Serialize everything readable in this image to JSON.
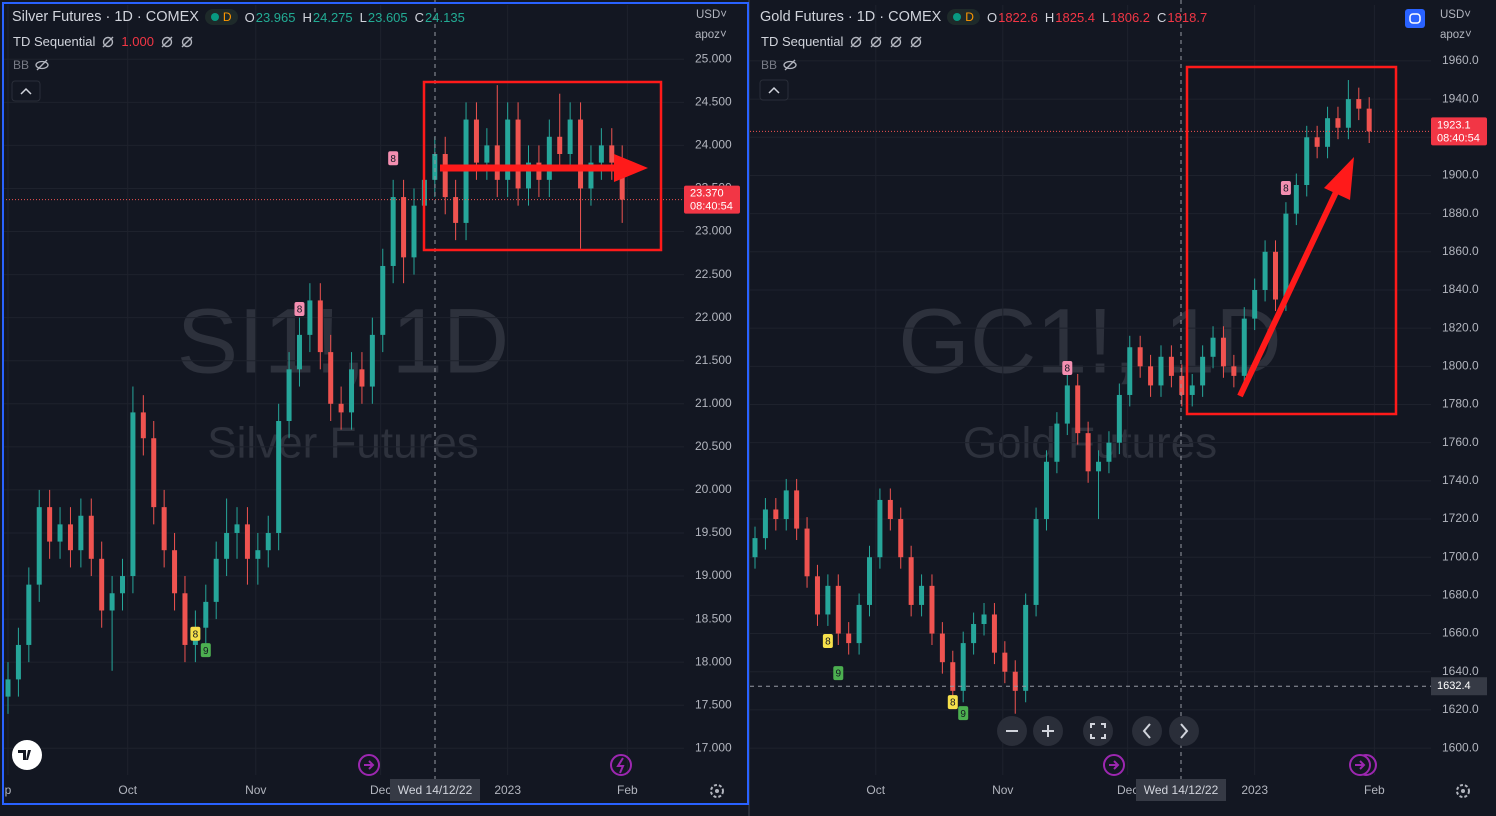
{
  "chart_data": [
    {
      "type": "candlestick",
      "title": "Silver Futures · 1D · COMEX",
      "interval_badge": "D",
      "ohlc_legend": [
        {
          "label": "O",
          "value": "23.965"
        },
        {
          "label": "H",
          "value": "24.275"
        },
        {
          "label": "L",
          "value": "23.605"
        },
        {
          "label": "C",
          "value": "24.135"
        }
      ],
      "ohlc_color": "#22ab94",
      "indicator": "TD Sequential",
      "indicator_param": "1.000",
      "overlay": "BB",
      "watermark": "SI1!, 1D",
      "watermark_sub": "Silver Futures",
      "currency": "USD",
      "unit": "apoz",
      "last_price": {
        "value": 23.37,
        "label": "23.370"
      },
      "countdown": "08:40:54",
      "crosshair_date": "Wed 14/12/22",
      "up_color": "#26a69a",
      "down_color": "#ef5350",
      "grid": true,
      "categories": [
        null,
        null,
        null,
        null,
        null,
        null,
        null,
        null,
        null,
        null,
        null,
        null,
        null,
        null,
        null,
        null,
        null,
        null,
        null,
        null,
        null,
        null,
        null,
        null,
        null,
        null,
        null,
        null,
        null,
        null,
        null,
        null,
        null,
        null,
        null,
        null,
        null,
        null,
        null,
        null,
        null,
        null,
        null,
        null,
        null,
        null,
        null,
        null,
        null,
        null,
        null,
        null,
        null,
        null,
        null,
        null,
        null,
        null,
        null,
        null
      ],
      "open": [
        17.6,
        17.8,
        18.2,
        18.9,
        19.8,
        19.4,
        19.6,
        19.3,
        19.7,
        19.2,
        18.6,
        18.8,
        19.0,
        20.9,
        20.6,
        19.8,
        19.3,
        18.8,
        18.2,
        18.4,
        18.7,
        19.2,
        19.5,
        19.6,
        19.2,
        19.3,
        19.5,
        20.8,
        21.4,
        21.8,
        22.2,
        21.6,
        21.0,
        20.9,
        21.4,
        21.2,
        21.8,
        22.6,
        23.4,
        22.7,
        23.3,
        23.6,
        23.9,
        23.4,
        23.1,
        24.3,
        23.8,
        24.0,
        23.6,
        24.3,
        23.5,
        23.8,
        23.6,
        24.1,
        23.9,
        24.3,
        23.5,
        23.8,
        24.0,
        23.8
      ],
      "high": [
        18.0,
        18.4,
        19.1,
        20.0,
        20.0,
        19.8,
        19.8,
        19.9,
        19.9,
        19.4,
        19.0,
        19.2,
        21.2,
        21.1,
        20.8,
        20.0,
        19.5,
        19.0,
        18.6,
        18.9,
        19.4,
        19.9,
        19.8,
        19.8,
        19.5,
        19.7,
        21.0,
        21.6,
        22.0,
        22.4,
        22.4,
        21.8,
        21.2,
        21.6,
        21.6,
        22.0,
        22.8,
        23.6,
        23.6,
        23.5,
        23.8,
        24.1,
        24.1,
        23.6,
        24.5,
        24.5,
        24.2,
        24.7,
        24.5,
        24.5,
        24.0,
        24.0,
        24.3,
        24.6,
        24.5,
        24.5,
        24.0,
        24.2,
        24.2,
        24.0
      ],
      "low": [
        17.4,
        17.6,
        18.0,
        18.7,
        19.2,
        19.2,
        19.1,
        19.1,
        19.0,
        18.4,
        17.9,
        18.6,
        18.8,
        20.4,
        19.6,
        19.1,
        18.6,
        18.0,
        18.0,
        18.2,
        18.5,
        19.0,
        19.2,
        18.9,
        18.9,
        19.1,
        19.3,
        20.6,
        21.2,
        21.6,
        21.4,
        20.8,
        20.7,
        20.7,
        21.0,
        21.0,
        21.6,
        22.4,
        22.4,
        22.5,
        23.1,
        23.4,
        23.2,
        22.9,
        22.9,
        23.6,
        23.6,
        23.4,
        23.4,
        23.3,
        23.3,
        23.4,
        23.4,
        23.7,
        23.7,
        22.8,
        23.3,
        23.6,
        23.6,
        23.1
      ],
      "close": [
        17.8,
        18.2,
        18.9,
        19.8,
        19.4,
        19.6,
        19.3,
        19.7,
        19.2,
        18.6,
        18.8,
        19.0,
        20.9,
        20.6,
        19.8,
        19.3,
        18.8,
        18.2,
        18.4,
        18.7,
        19.2,
        19.5,
        19.6,
        19.2,
        19.3,
        19.5,
        20.8,
        21.4,
        21.8,
        22.2,
        21.6,
        21.0,
        20.9,
        21.4,
        21.2,
        21.8,
        22.6,
        23.4,
        22.7,
        23.3,
        23.6,
        23.9,
        23.4,
        23.1,
        24.3,
        23.8,
        24.0,
        23.6,
        24.3,
        23.5,
        23.8,
        23.6,
        24.1,
        23.9,
        24.3,
        23.5,
        23.8,
        24.0,
        23.8,
        23.37
      ],
      "annotations": [
        {
          "text": "8",
          "index": 18,
          "y": 18.33,
          "color": "#f7e14b"
        },
        {
          "text": "9",
          "index": 19,
          "y": 18.14,
          "color": "#4caf50"
        },
        {
          "text": "8",
          "index": 28,
          "y": 22.1,
          "color": "#f48fb1"
        },
        {
          "text": "8",
          "index": 37,
          "y": 23.85,
          "color": "#f48fb1"
        }
      ],
      "ylim": [
        16.69,
        25.63
      ],
      "yticks": [
        {
          "value": 17,
          "label": "17.000"
        },
        {
          "value": 17.5,
          "label": "17.500"
        },
        {
          "value": 18,
          "label": "18.000"
        },
        {
          "value": 18.5,
          "label": "18.500"
        },
        {
          "value": 19,
          "label": "19.000"
        },
        {
          "value": 19.5,
          "label": "19.500"
        },
        {
          "value": 20,
          "label": "20.000"
        },
        {
          "value": 20.5,
          "label": "20.500"
        },
        {
          "value": 21,
          "label": "21.000"
        },
        {
          "value": 21.5,
          "label": "21.500"
        },
        {
          "value": 22,
          "label": "22.000"
        },
        {
          "value": 22.5,
          "label": "22.500"
        },
        {
          "value": 23,
          "label": "23.000"
        },
        {
          "value": 23.5,
          "label": "23.500"
        },
        {
          "value": 24,
          "label": "24.000"
        },
        {
          "value": 24.5,
          "label": "24.500"
        },
        {
          "value": 25,
          "label": "25.000"
        }
      ],
      "xticks": [
        {
          "value": 0,
          "label": "p"
        },
        {
          "value": 11.5,
          "label": "Oct"
        },
        {
          "value": 23.8,
          "label": "Nov"
        },
        {
          "value": 35.8,
          "label": "Dec"
        },
        {
          "value": 48,
          "label": "2023"
        },
        {
          "value": 59.5,
          "label": "Feb"
        }
      ]
    },
    {
      "type": "candlestick",
      "title": "Gold Futures · 1D · COMEX",
      "interval_badge": "D",
      "ohlc_legend": [
        {
          "label": "O",
          "value": "1822.6"
        },
        {
          "label": "H",
          "value": "1825.4"
        },
        {
          "label": "L",
          "value": "1806.2"
        },
        {
          "label": "C",
          "value": "1818.7"
        }
      ],
      "ohlc_color": "#f23645",
      "indicator": "TD Sequential",
      "overlay": "BB",
      "watermark": "GC1!, 1D",
      "watermark_sub": "Gold Futures",
      "currency": "USD",
      "unit": "apoz",
      "last_price": {
        "value": 1923.1,
        "label": "1923.1"
      },
      "countdown": "08:40:54",
      "crosshair_price": 1632.4,
      "crosshair_date": "Wed 14/12/22",
      "up_color": "#26a69a",
      "down_color": "#ef5350",
      "grid": true,
      "categories": [
        null,
        null,
        null,
        null,
        null,
        null,
        null,
        null,
        null,
        null,
        null,
        null,
        null,
        null,
        null,
        null,
        null,
        null,
        null,
        null,
        null,
        null,
        null,
        null,
        null,
        null,
        null,
        null,
        null,
        null,
        null,
        null,
        null,
        null,
        null,
        null,
        null,
        null,
        null,
        null,
        null,
        null,
        null,
        null,
        null,
        null,
        null,
        null,
        null,
        null,
        null,
        null,
        null,
        null,
        null,
        null,
        null,
        null,
        null,
        null
      ],
      "open": [
        1700,
        1710,
        1725,
        1720,
        1735,
        1715,
        1690,
        1670,
        1685,
        1660,
        1655,
        1675,
        1700,
        1730,
        1720,
        1700,
        1675,
        1685,
        1660,
        1645,
        1630,
        1655,
        1665,
        1670,
        1650,
        1640,
        1630,
        1675,
        1720,
        1750,
        1770,
        1790,
        1765,
        1745,
        1750,
        1760,
        1785,
        1810,
        1800,
        1790,
        1805,
        1795,
        1785,
        1790,
        1805,
        1815,
        1800,
        1795,
        1825,
        1840,
        1860,
        1835,
        1880,
        1895,
        1920,
        1915,
        1930,
        1925,
        1940,
        1935
      ],
      "high": [
        1716,
        1731,
        1731,
        1741,
        1741,
        1721,
        1696,
        1691,
        1691,
        1666,
        1681,
        1706,
        1736,
        1736,
        1726,
        1706,
        1691,
        1691,
        1666,
        1651,
        1661,
        1671,
        1676,
        1676,
        1656,
        1646,
        1681,
        1726,
        1756,
        1776,
        1796,
        1796,
        1771,
        1756,
        1766,
        1791,
        1816,
        1816,
        1806,
        1811,
        1811,
        1801,
        1796,
        1811,
        1821,
        1821,
        1806,
        1831,
        1846,
        1866,
        1866,
        1886,
        1901,
        1926,
        1926,
        1936,
        1936,
        1950,
        1946,
        1941
      ],
      "low": [
        1694,
        1704,
        1714,
        1714,
        1709,
        1684,
        1664,
        1664,
        1654,
        1649,
        1649,
        1669,
        1694,
        1714,
        1694,
        1669,
        1669,
        1654,
        1639,
        1624,
        1624,
        1649,
        1659,
        1644,
        1634,
        1618,
        1624,
        1669,
        1714,
        1744,
        1764,
        1759,
        1739,
        1720,
        1744,
        1754,
        1779,
        1794,
        1784,
        1784,
        1789,
        1779,
        1779,
        1784,
        1799,
        1794,
        1789,
        1789,
        1819,
        1834,
        1829,
        1829,
        1874,
        1889,
        1909,
        1909,
        1919,
        1919,
        1929,
        1917
      ],
      "close": [
        1710,
        1725,
        1720,
        1735,
        1715,
        1690,
        1670,
        1685,
        1660,
        1655,
        1675,
        1700,
        1730,
        1720,
        1700,
        1675,
        1685,
        1660,
        1645,
        1630,
        1655,
        1665,
        1670,
        1650,
        1640,
        1630,
        1675,
        1720,
        1750,
        1770,
        1790,
        1765,
        1745,
        1750,
        1760,
        1785,
        1810,
        1800,
        1790,
        1805,
        1795,
        1785,
        1790,
        1805,
        1815,
        1800,
        1795,
        1825,
        1840,
        1860,
        1835,
        1880,
        1895,
        1920,
        1915,
        1930,
        1925,
        1940,
        1935,
        1923.1
      ],
      "annotations": [
        {
          "text": "8",
          "index": 7,
          "y": 1656.1,
          "color": "#f7e14b"
        },
        {
          "text": "9",
          "index": 8,
          "y": 1639.3,
          "color": "#4caf50"
        },
        {
          "text": "8",
          "index": 19,
          "y": 1624.1,
          "color": "#f7e14b"
        },
        {
          "text": "9",
          "index": 20,
          "y": 1618.3,
          "color": "#4caf50"
        },
        {
          "text": "8",
          "index": 30,
          "y": 1799.1,
          "color": "#f48fb1"
        },
        {
          "text": "8",
          "index": 51,
          "y": 1893.4,
          "color": "#f48fb1"
        }
      ],
      "ylim": [
        1585.9,
        1989.3
      ],
      "yticks": [
        {
          "value": 1600,
          "label": "1600.0"
        },
        {
          "value": 1620,
          "label": "1620.0"
        },
        {
          "value": 1640,
          "label": "1640.0"
        },
        {
          "value": 1660,
          "label": "1660.0"
        },
        {
          "value": 1680,
          "label": "1680.0"
        },
        {
          "value": 1700,
          "label": "1700.0"
        },
        {
          "value": 1720,
          "label": "1720.0"
        },
        {
          "value": 1740,
          "label": "1740.0"
        },
        {
          "value": 1760,
          "label": "1760.0"
        },
        {
          "value": 1780,
          "label": "1780.0"
        },
        {
          "value": 1800,
          "label": "1800.0"
        },
        {
          "value": 1820,
          "label": "1820.0"
        },
        {
          "value": 1840,
          "label": "1840.0"
        },
        {
          "value": 1860,
          "label": "1860.0"
        },
        {
          "value": 1880,
          "label": "1880.0"
        },
        {
          "value": 1900,
          "label": "1900.0"
        },
        {
          "value": 1920,
          "label": "1920.0"
        },
        {
          "value": 1940,
          "label": "1940.0"
        },
        {
          "value": 1960,
          "label": "1960.0"
        }
      ],
      "xticks": [
        {
          "value": 11.6,
          "label": "Oct"
        },
        {
          "value": 23.8,
          "label": "Nov"
        },
        {
          "value": 35.8,
          "label": "Dec"
        },
        {
          "value": 48,
          "label": "2023"
        },
        {
          "value": 59.5,
          "label": "Feb"
        }
      ]
    }
  ]
}
